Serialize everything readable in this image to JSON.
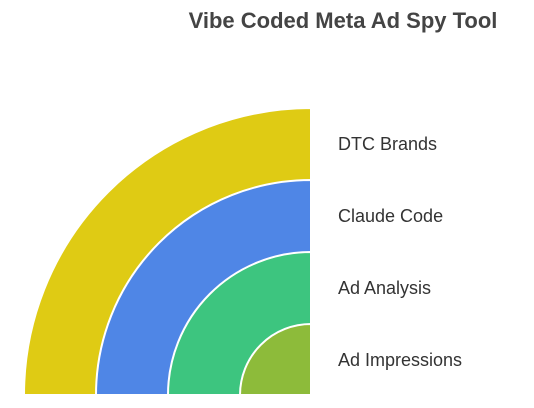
{
  "title": "Vibe Coded Meta Ad Spy Tool",
  "layers": [
    {
      "label": "DTC Brands"
    },
    {
      "label": "Claude Code"
    },
    {
      "label": "Ad Analysis"
    },
    {
      "label": "Ad Impressions"
    }
  ]
}
